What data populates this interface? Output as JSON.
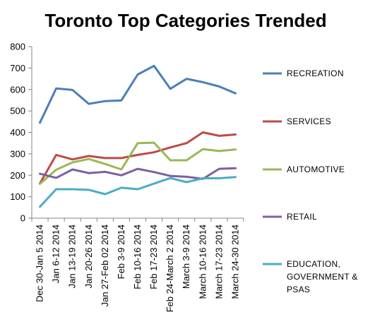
{
  "chart_data": {
    "type": "line",
    "title": "Toronto Top Categories Trended",
    "xlabel": "",
    "ylabel": "",
    "ylim": [
      0,
      800
    ],
    "yticks": [
      0,
      100,
      200,
      300,
      400,
      500,
      600,
      700,
      800
    ],
    "grid": false,
    "legend_position": "right",
    "categories": [
      "Dec 30-Jan 5 2014",
      "Jan 6-12 2014",
      "Jan 13-19 2014",
      "Jan 20-26 2014",
      "Jan 27-Feb 02 2014",
      "Feb 3-9 2014",
      "Feb 10-16 2014",
      "Feb 17-23 2014",
      "Feb 24-March 2 2014",
      "March 3-9 2014",
      "March 10-16 2014",
      "March 17-23 2014",
      "March 24-30 2014"
    ],
    "series": [
      {
        "name": "RECREATION",
        "legend_lines": [
          "RECREATION"
        ],
        "color": "#4A7EBB",
        "values": [
          445,
          605,
          598,
          533,
          546,
          549,
          670,
          710,
          603,
          650,
          634,
          614,
          582
        ]
      },
      {
        "name": "SERVICES",
        "legend_lines": [
          "SERVICES"
        ],
        "color": "#BE4B48",
        "values": [
          162,
          295,
          274,
          290,
          280,
          280,
          295,
          307,
          330,
          350,
          400,
          384,
          390
        ]
      },
      {
        "name": "AUTOMOTIVE",
        "legend_lines": [
          "AUTOMOTIVE"
        ],
        "color": "#98B954",
        "values": [
          160,
          226,
          260,
          276,
          253,
          227,
          350,
          352,
          270,
          270,
          322,
          313,
          320
        ]
      },
      {
        "name": "RETAIL",
        "legend_lines": [
          "RETAIL"
        ],
        "color": "#7D60A0",
        "values": [
          207,
          188,
          227,
          210,
          216,
          200,
          230,
          215,
          197,
          193,
          183,
          230,
          233
        ]
      },
      {
        "name": "EDUCATION, GOVERNMENT & PSAS",
        "legend_lines": [
          "EDUCATION,",
          "GOVERNMENT &",
          "PSAS"
        ],
        "color": "#4BACC6",
        "values": [
          53,
          135,
          135,
          132,
          112,
          142,
          135,
          161,
          187,
          168,
          186,
          186,
          192
        ]
      }
    ]
  }
}
